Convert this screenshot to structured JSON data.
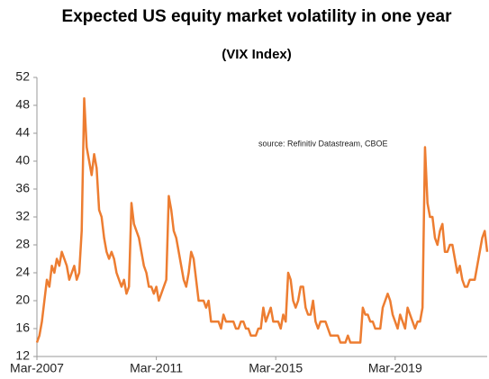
{
  "chart_data": {
    "type": "line",
    "title": "Expected US equity market volatility in one year",
    "subtitle": "(VIX Index)",
    "annotation": "source:  Refinitiv Datastream,  CBOE",
    "x": [
      "Mar-2007",
      "Apr-2007",
      "May-2007",
      "Jun-2007",
      "Jul-2007",
      "Aug-2007",
      "Sep-2007",
      "Oct-2007",
      "Nov-2007",
      "Dec-2007",
      "Jan-2008",
      "Feb-2008",
      "Mar-2008",
      "Apr-2008",
      "May-2008",
      "Jun-2008",
      "Jul-2008",
      "Aug-2008",
      "Sep-2008",
      "Oct-2008",
      "Nov-2008",
      "Dec-2008",
      "Jan-2009",
      "Feb-2009",
      "Mar-2009",
      "Apr-2009",
      "May-2009",
      "Jun-2009",
      "Jul-2009",
      "Aug-2009",
      "Sep-2009",
      "Oct-2009",
      "Nov-2009",
      "Dec-2009",
      "Jan-2010",
      "Feb-2010",
      "Mar-2010",
      "Apr-2010",
      "May-2010",
      "Jun-2010",
      "Jul-2010",
      "Aug-2010",
      "Sep-2010",
      "Oct-2010",
      "Nov-2010",
      "Dec-2010",
      "Jan-2011",
      "Feb-2011",
      "Mar-2011",
      "Apr-2011",
      "May-2011",
      "Jun-2011",
      "Jul-2011",
      "Aug-2011",
      "Sep-2011",
      "Oct-2011",
      "Nov-2011",
      "Dec-2011",
      "Jan-2012",
      "Feb-2012",
      "Mar-2012",
      "Apr-2012",
      "May-2012",
      "Jun-2012",
      "Jul-2012",
      "Aug-2012",
      "Sep-2012",
      "Oct-2012",
      "Nov-2012",
      "Dec-2012",
      "Jan-2013",
      "Feb-2013",
      "Mar-2013",
      "Apr-2013",
      "May-2013",
      "Jun-2013",
      "Jul-2013",
      "Aug-2013",
      "Sep-2013",
      "Oct-2013",
      "Nov-2013",
      "Dec-2013",
      "Jan-2014",
      "Feb-2014",
      "Mar-2014",
      "Apr-2014",
      "May-2014",
      "Jun-2014",
      "Jul-2014",
      "Aug-2014",
      "Sep-2014",
      "Oct-2014",
      "Nov-2014",
      "Dec-2014",
      "Jan-2015",
      "Feb-2015",
      "Mar-2015",
      "Apr-2015",
      "May-2015",
      "Jun-2015",
      "Jul-2015",
      "Aug-2015",
      "Sep-2015",
      "Oct-2015",
      "Nov-2015",
      "Dec-2015",
      "Jan-2016",
      "Feb-2016",
      "Mar-2016",
      "Apr-2016",
      "May-2016",
      "Jun-2016",
      "Jul-2016",
      "Aug-2016",
      "Sep-2016",
      "Oct-2016",
      "Nov-2016",
      "Dec-2016",
      "Jan-2017",
      "Feb-2017",
      "Mar-2017",
      "Apr-2017",
      "May-2017",
      "Jun-2017",
      "Jul-2017",
      "Aug-2017",
      "Sep-2017",
      "Oct-2017",
      "Nov-2017",
      "Dec-2017",
      "Jan-2018",
      "Feb-2018",
      "Mar-2018",
      "Apr-2018",
      "May-2018",
      "Jun-2018",
      "Jul-2018",
      "Aug-2018",
      "Sep-2018",
      "Oct-2018",
      "Nov-2018",
      "Dec-2018",
      "Jan-2019",
      "Feb-2019",
      "Mar-2019",
      "Apr-2019",
      "May-2019",
      "Jun-2019",
      "Jul-2019",
      "Aug-2019",
      "Sep-2019",
      "Oct-2019",
      "Nov-2019",
      "Dec-2019",
      "Jan-2020",
      "Feb-2020",
      "Mar-2020",
      "Apr-2020",
      "May-2020",
      "Jun-2020",
      "Jul-2020",
      "Aug-2020",
      "Sep-2020",
      "Oct-2020",
      "Nov-2020",
      "Dec-2020",
      "Jan-2021",
      "Feb-2021",
      "Mar-2021",
      "Apr-2021",
      "May-2021",
      "Jun-2021",
      "Jul-2021",
      "Aug-2021",
      "Sep-2021",
      "Oct-2021",
      "Nov-2021",
      "Dec-2021",
      "Jan-2022",
      "Feb-2022",
      "Mar-2022",
      "Apr-2022"
    ],
    "series": [
      {
        "name": "VIX Index",
        "color": "#ed7d31",
        "values": [
          14,
          15,
          17,
          20,
          23,
          22,
          25,
          24,
          26,
          25,
          27,
          26,
          25,
          23,
          24,
          25,
          23,
          24,
          30,
          49,
          42,
          40,
          38,
          41,
          39,
          33,
          32,
          29,
          27,
          26,
          27,
          26,
          24,
          23,
          22,
          23,
          21,
          22,
          34,
          31,
          30,
          29,
          27,
          25,
          24,
          22,
          22,
          21,
          22,
          20,
          21,
          22,
          23,
          35,
          33,
          30,
          29,
          27,
          25,
          23,
          22,
          24,
          27,
          26,
          23,
          20,
          20,
          20,
          19,
          20,
          17,
          17,
          17,
          17,
          16,
          18,
          17,
          17,
          17,
          17,
          16,
          16,
          17,
          17,
          16,
          16,
          15,
          15,
          15,
          16,
          16,
          19,
          17,
          18,
          19,
          17,
          17,
          17,
          16,
          18,
          17,
          24,
          23,
          20,
          19,
          20,
          22,
          22,
          19,
          18,
          18,
          20,
          17,
          16,
          17,
          17,
          17,
          16,
          15,
          15,
          15,
          15,
          14,
          14,
          14,
          15,
          14,
          14,
          14,
          14,
          14,
          19,
          18,
          18,
          17,
          17,
          16,
          16,
          16,
          19,
          20,
          21,
          20,
          18,
          17,
          16,
          18,
          17,
          16,
          19,
          18,
          17,
          16,
          17,
          17,
          19,
          42,
          34,
          32,
          32,
          29,
          28,
          30,
          31,
          27,
          27,
          28,
          28,
          26,
          24,
          25,
          23,
          22,
          22,
          23,
          23,
          23,
          25,
          27,
          29,
          30,
          27
        ]
      }
    ],
    "xticks": [
      "Mar-2007",
      "Mar-2011",
      "Mar-2015",
      "Mar-2019"
    ],
    "ylim": [
      12,
      52
    ],
    "yticks": [
      12,
      16,
      20,
      24,
      28,
      32,
      36,
      40,
      44,
      48,
      52
    ]
  }
}
